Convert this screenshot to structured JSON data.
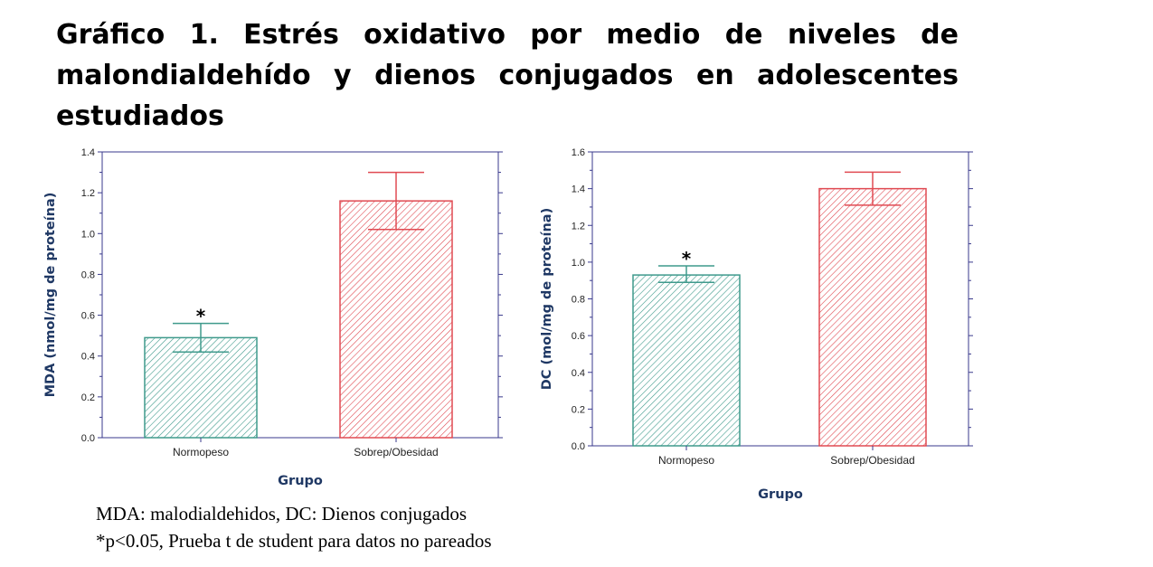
{
  "title": "Gráfico 1. Estrés oxidativo por medio de niveles de malondialdehído y dienos conjugados en adolescentes estudiados",
  "footnote": {
    "line1": "MDA: malodialdehidos, DC: Dienos conjugados",
    "line2": "*p<0.05, Prueba t de student para datos no pareados"
  },
  "colors": {
    "normopeso": "#3f9a8c",
    "sobrepeso": "#e04a52",
    "axis": "#3a3a8c"
  },
  "chart_data": [
    {
      "type": "bar",
      "title": "",
      "xlabel": "Grupo",
      "ylabel": "MDA (nmol/mg de proteína)",
      "categories": [
        "Normopeso",
        "Sobrep/Obesidad"
      ],
      "values": [
        0.49,
        1.16
      ],
      "error_low": [
        0.42,
        1.02
      ],
      "error_high": [
        0.56,
        1.3
      ],
      "annotations": [
        "*",
        ""
      ],
      "ylim": [
        0,
        1.4
      ],
      "yticks": [
        "0.0",
        "0.2",
        "0.4",
        "0.6",
        "0.8",
        "1.0",
        "1.2",
        "1.4"
      ],
      "grid": false
    },
    {
      "type": "bar",
      "title": "",
      "xlabel": "Grupo",
      "ylabel": "DC (mol/mg de proteína)",
      "categories": [
        "Normopeso",
        "Sobrep/Obesidad"
      ],
      "values": [
        0.93,
        1.4
      ],
      "error_low": [
        0.89,
        1.31
      ],
      "error_high": [
        0.98,
        1.49
      ],
      "annotations": [
        "*",
        ""
      ],
      "ylim": [
        0,
        1.6
      ],
      "yticks": [
        "0.0",
        "0.2",
        "0.4",
        "0.6",
        "0.8",
        "1.0",
        "1.2",
        "1.4",
        "1.6"
      ],
      "grid": false
    }
  ]
}
